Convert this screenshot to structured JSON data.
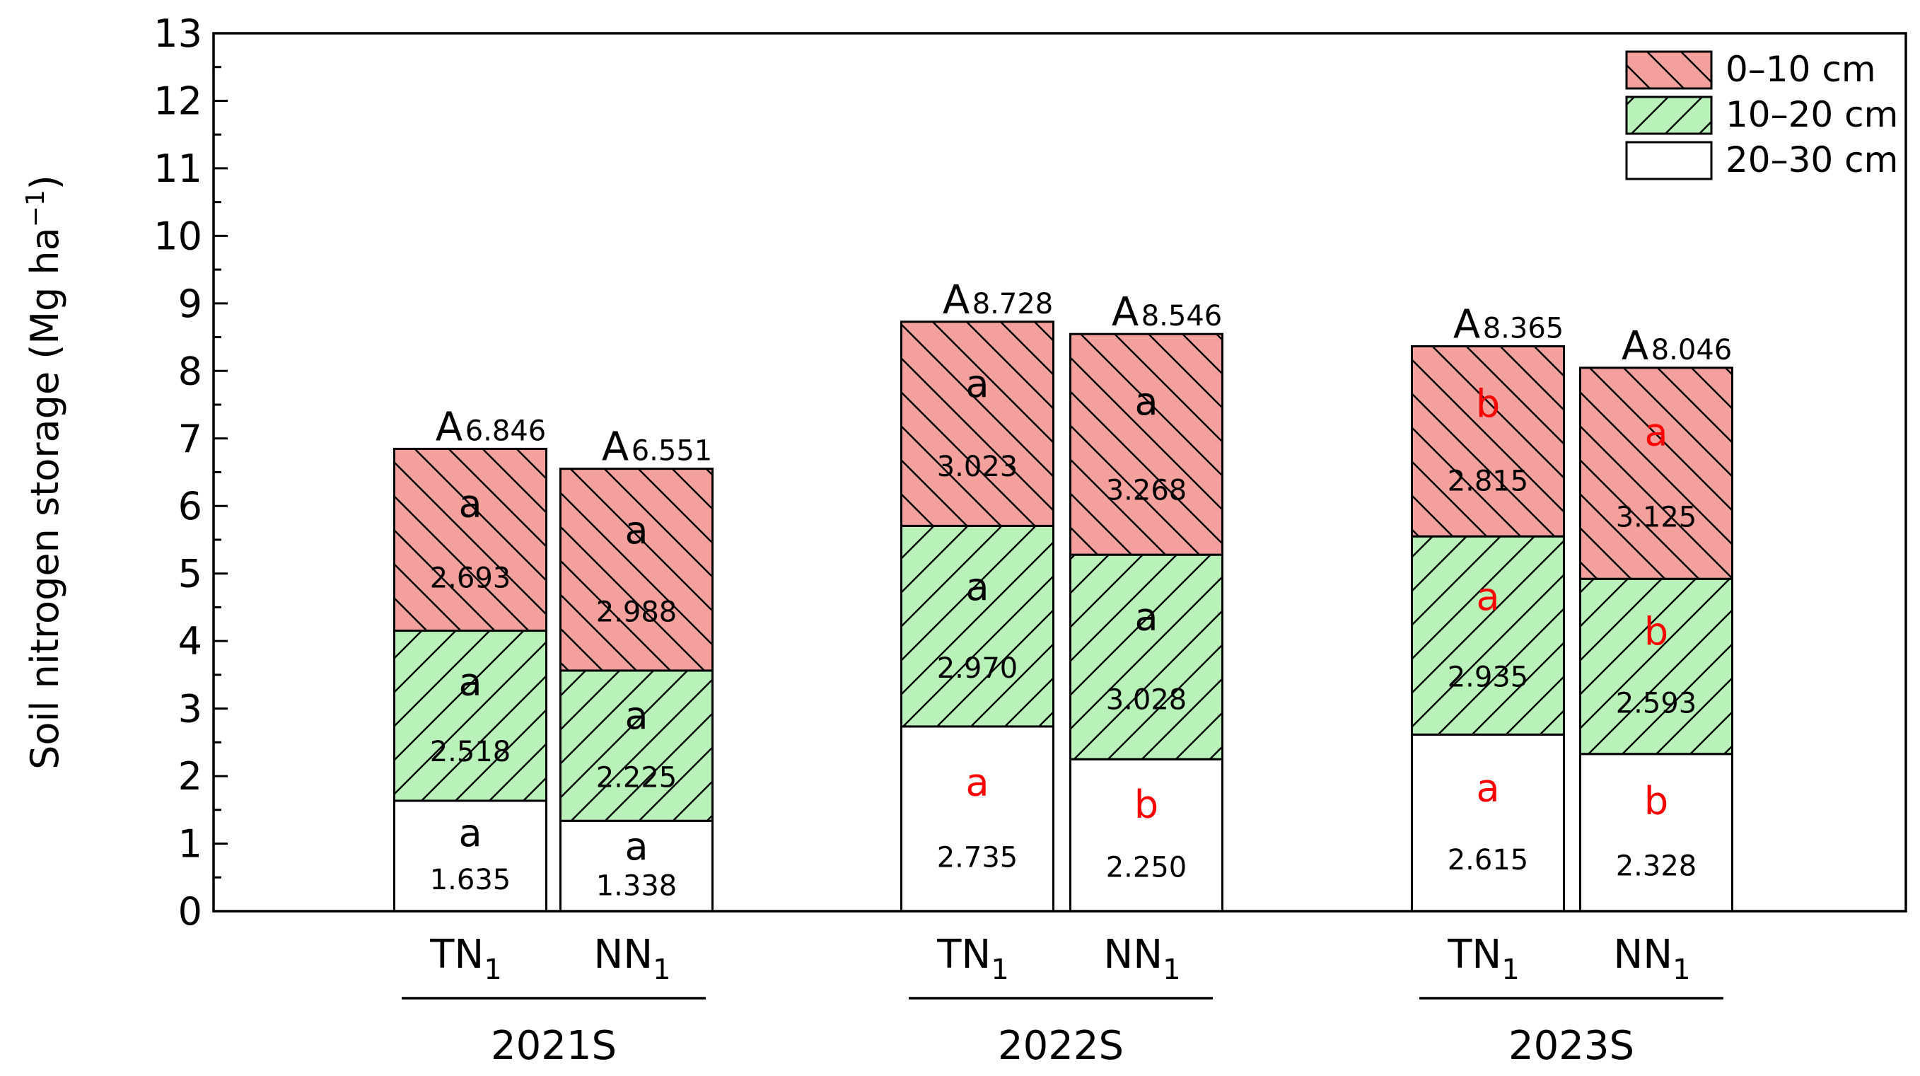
{
  "chart_data": {
    "type": "bar",
    "stacked": true,
    "ylabel": "Soil nitrogen storage (Mg ha",
    "ylabel_unit_sup": "−1",
    "ylabel_close": ")",
    "ylim": [
      0,
      13
    ],
    "yticks": [
      "0",
      "1",
      "2",
      "3",
      "4",
      "5",
      "6",
      "7",
      "8",
      "9",
      "10",
      "11",
      "12",
      "13"
    ],
    "legend": {
      "position": "top-right",
      "entries": [
        {
          "label": "0–10 cm",
          "color": "#f4a09c",
          "hatch": "backslash"
        },
        {
          "label": "10–20 cm",
          "color": "#b8f2b8",
          "hatch": "slash"
        },
        {
          "label": "20–30 cm",
          "color": "#ffffff",
          "hatch": "none"
        }
      ]
    },
    "series": [
      {
        "name": "20–30 cm",
        "values": [
          1.635,
          1.338,
          2.735,
          2.25,
          2.615,
          2.328
        ],
        "value_labels": [
          "1.635",
          "1.338",
          "2.735",
          "2.250",
          "2.615",
          "2.328"
        ]
      },
      {
        "name": "10–20 cm",
        "values": [
          2.518,
          2.225,
          2.97,
          3.028,
          2.935,
          2.593
        ],
        "value_labels": [
          "2.518",
          "2.225",
          "2.970",
          "3.028",
          "2.935",
          "2.593"
        ]
      },
      {
        "name": "0–10 cm",
        "values": [
          2.693,
          2.988,
          3.023,
          3.268,
          2.815,
          3.125
        ],
        "value_labels": [
          "2.693",
          "2.988",
          "3.023",
          "3.268",
          "2.815",
          "3.125"
        ]
      }
    ],
    "letters": [
      [
        {
          "t": "a",
          "c": "#000000"
        },
        {
          "t": "a",
          "c": "#000000"
        },
        {
          "t": "a",
          "c": "#ff0000"
        },
        {
          "t": "b",
          "c": "#ff0000"
        },
        {
          "t": "a",
          "c": "#ff0000"
        },
        {
          "t": "b",
          "c": "#ff0000"
        }
      ],
      [
        {
          "t": "a",
          "c": "#000000"
        },
        {
          "t": "a",
          "c": "#000000"
        },
        {
          "t": "a",
          "c": "#000000"
        },
        {
          "t": "a",
          "c": "#000000"
        },
        {
          "t": "a",
          "c": "#ff0000"
        },
        {
          "t": "b",
          "c": "#ff0000"
        }
      ],
      [
        {
          "t": "a",
          "c": "#000000"
        },
        {
          "t": "a",
          "c": "#000000"
        },
        {
          "t": "a",
          "c": "#000000"
        },
        {
          "t": "a",
          "c": "#000000"
        },
        {
          "t": "b",
          "c": "#ff0000"
        },
        {
          "t": "a",
          "c": "#ff0000"
        }
      ]
    ],
    "totals": [
      {
        "letter": "A",
        "value": "6.846"
      },
      {
        "letter": "A",
        "value": "6.551"
      },
      {
        "letter": "A",
        "value": "8.728"
      },
      {
        "letter": "A",
        "value": "8.546"
      },
      {
        "letter": "A",
        "value": "8.365"
      },
      {
        "letter": "A",
        "value": "8.046"
      }
    ],
    "categories": [
      {
        "main": "TN",
        "sub": "1"
      },
      {
        "main": "NN",
        "sub": "1"
      },
      {
        "main": "TN",
        "sub": "1"
      },
      {
        "main": "NN",
        "sub": "1"
      },
      {
        "main": "TN",
        "sub": "1"
      },
      {
        "main": "NN",
        "sub": "1"
      }
    ],
    "groups": [
      "2021S",
      "2022S",
      "2023S"
    ]
  }
}
